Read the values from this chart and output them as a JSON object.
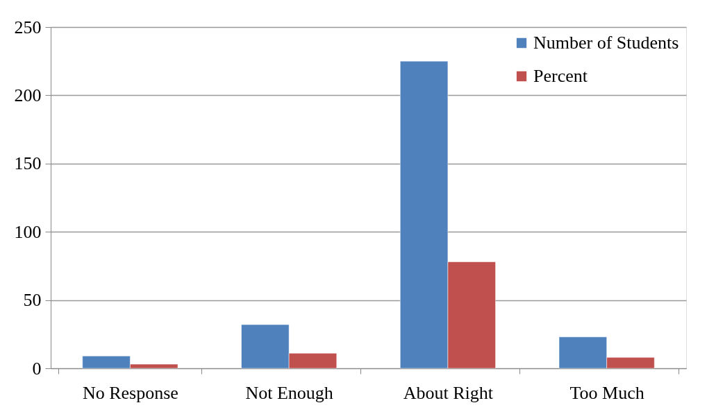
{
  "chart_data": {
    "type": "bar",
    "categories": [
      "No Response",
      "Not Enough",
      "About Right",
      "Too Much"
    ],
    "series": [
      {
        "name": "Number of Students",
        "color": "#4f81bd",
        "values": [
          9,
          32,
          225,
          23
        ]
      },
      {
        "name": "Percent",
        "color": "#c0504d",
        "values": [
          3,
          11,
          78,
          8
        ]
      }
    ],
    "ylim": [
      0,
      250
    ],
    "yticks": [
      0,
      50,
      100,
      150,
      200,
      250
    ],
    "grid": "y",
    "legend": "top right"
  }
}
